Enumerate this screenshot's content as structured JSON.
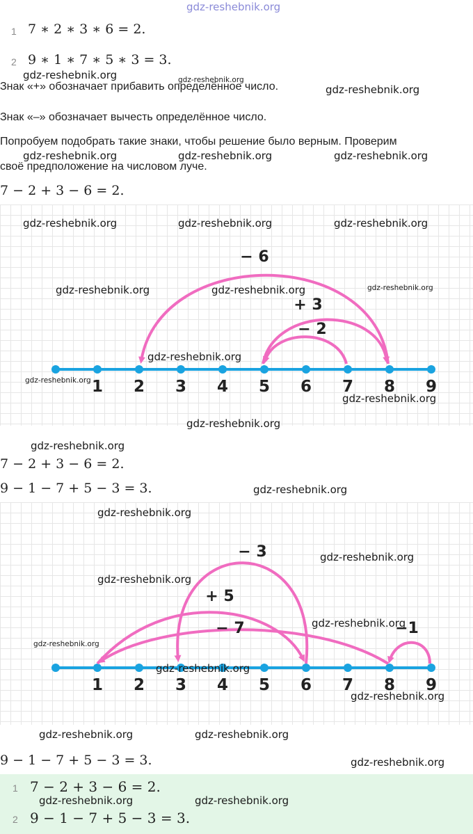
{
  "site": "gdz-reshebnik.org",
  "problem": [
    {
      "n": "1",
      "expr": "7 ∗ 2 ∗ 3 ∗ 6 = 2."
    },
    {
      "n": "2",
      "expr": "9 ∗ 1 ∗ 7 ∗ 5 ∗ 3 = 3."
    }
  ],
  "text": {
    "plus": "Знак «+» обозначает прибавить определённое число.",
    "minus": "Знак «–» обозначает вычесть определённое число.",
    "try_line1": "Попробуем подобрать такие знаки, чтобы решение было верным. Проверим",
    "try_line2": "своё предположение на числовом луче."
  },
  "eq1": "7 − 2 + 3 − 6 = 2.",
  "eq1_repeat": "7 − 2 + 3 − 6 = 2.",
  "eq2": "9 − 1 − 7 + 5 − 3 = 3.",
  "eq2_repeat": "9 − 1 − 7 + 5 − 3 = 3.",
  "ray1": {
    "ticks": [
      "1",
      "2",
      "3",
      "4",
      "5",
      "6",
      "7",
      "8",
      "9"
    ],
    "arc_labels": [
      "− 6",
      "+ 3",
      "− 2"
    ]
  },
  "ray2": {
    "ticks": [
      "1",
      "2",
      "3",
      "4",
      "5",
      "6",
      "7",
      "8",
      "9"
    ],
    "arc_labels": [
      "− 3",
      "+ 5",
      "− 7",
      "−1"
    ]
  },
  "answers": [
    {
      "n": "1",
      "expr": "7 − 2 + 3 − 6 = 2."
    },
    {
      "n": "2",
      "expr": "9 − 1 − 7 + 5 − 3 = 3."
    }
  ],
  "colors": {
    "ray": "#1aa3e0",
    "arc": "#f06cc0",
    "answer_bg": "#e3f6e7"
  }
}
